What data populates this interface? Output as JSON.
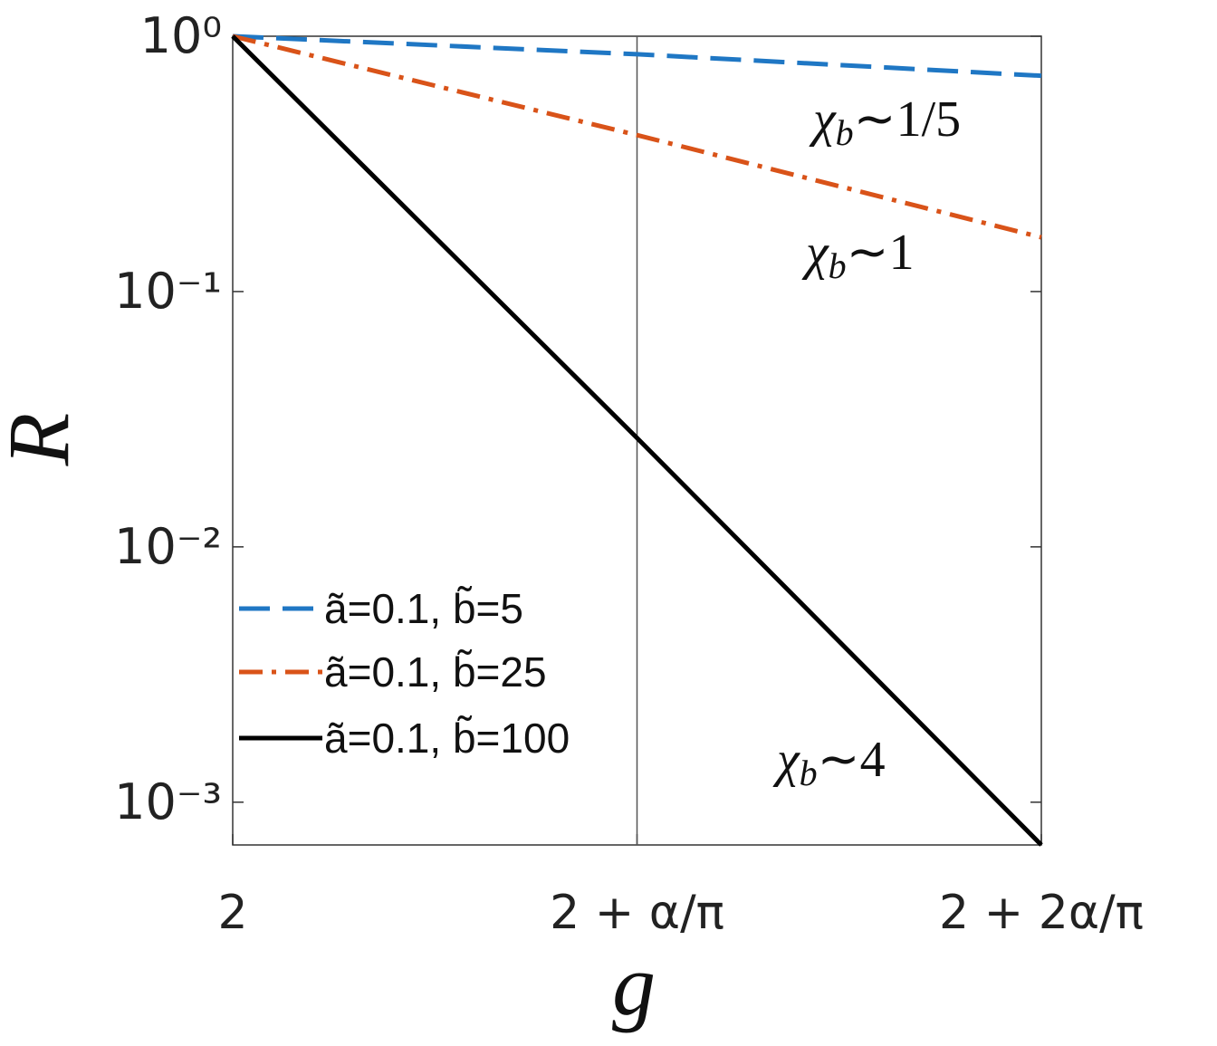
{
  "chart_data": {
    "type": "line",
    "x_label": "g",
    "y_label": "R",
    "x": [
      0,
      1,
      2
    ],
    "xlim": [
      0,
      2
    ],
    "xticks": [
      {
        "value": 0,
        "label": "2"
      },
      {
        "value": 1,
        "label": "2 + α/π"
      },
      {
        "value": 2,
        "label": "2 + 2α/π"
      }
    ],
    "vlines": [
      1
    ],
    "ylim": [
      0.00068,
      1
    ],
    "yscale": "log",
    "yticks": [
      {
        "value": 1,
        "label": "10⁰"
      },
      {
        "value": 0.1,
        "label": "10⁻¹"
      },
      {
        "value": 0.01,
        "label": "10⁻²"
      },
      {
        "value": 0.001,
        "label": "10⁻³"
      }
    ],
    "legend": "lower left",
    "series": [
      {
        "name": "ã=0.1, b̃=5",
        "color": "#1f77c4",
        "dash": "dashed",
        "values": [
          1,
          0.85,
          0.7
        ]
      },
      {
        "name": "ã=0.1, b̃=25",
        "color": "#d95319",
        "dash": "dashdot",
        "values": [
          1,
          0.41,
          0.163
        ]
      },
      {
        "name": "ã=0.1, b̃=100",
        "color": "#000000",
        "dash": "solid",
        "values": [
          1,
          0.0267,
          0.00068
        ]
      }
    ],
    "annotations": [
      {
        "symbol": "χ",
        "subscript": "b",
        "text": "∼1/5"
      },
      {
        "symbol": "χ",
        "subscript": "b",
        "text": "∼1"
      },
      {
        "symbol": "χ",
        "subscript": "b",
        "text": "∼4"
      }
    ]
  }
}
